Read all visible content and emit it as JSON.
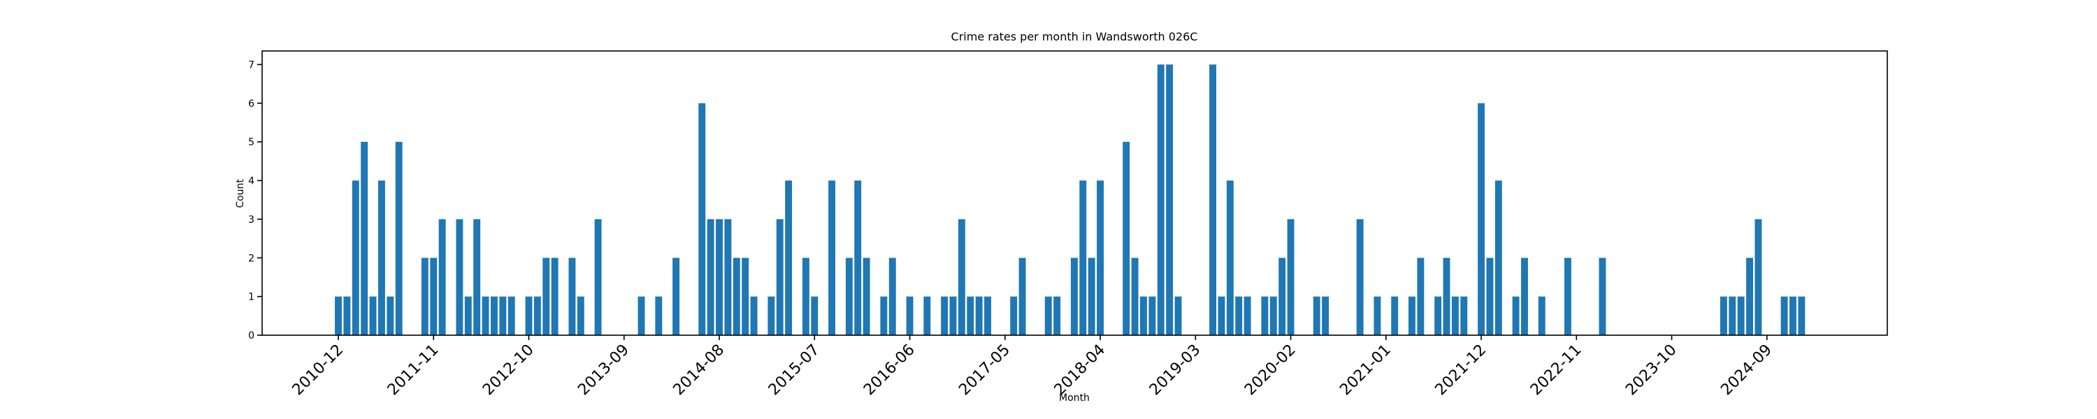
{
  "chart_data": {
    "type": "bar",
    "title": "Crime rates per month in Wandsworth 026C",
    "x_label": "Month",
    "y_label": "Count",
    "color": "#1f77b4",
    "categories": [
      "2010-12",
      null,
      null,
      null,
      null,
      null,
      null,
      null,
      null,
      null,
      null,
      "2011-11",
      null,
      null,
      null,
      null,
      null,
      null,
      null,
      null,
      null,
      null,
      "2012-10",
      null,
      null,
      null,
      null,
      null,
      null,
      null,
      null,
      null,
      null,
      "2013-09",
      null,
      null,
      null,
      null,
      null,
      null,
      null,
      null,
      null,
      null,
      "2014-08",
      null,
      null,
      null,
      null,
      null,
      null,
      null,
      null,
      null,
      null,
      "2015-07",
      null,
      null,
      null,
      null,
      null,
      null,
      null,
      null,
      null,
      null,
      "2016-06",
      null,
      null,
      null,
      null,
      null,
      null,
      null,
      null,
      null,
      null,
      "2017-05",
      null,
      null,
      null,
      null,
      null,
      null,
      null,
      null,
      null,
      null,
      "2018-04",
      null,
      null,
      null,
      null,
      null,
      null,
      null,
      null,
      null,
      null,
      "2019-03",
      null,
      null,
      null,
      null,
      null,
      null,
      null,
      null,
      null,
      null,
      "2020-02",
      null,
      null,
      null,
      null,
      null,
      null,
      null,
      null,
      null,
      null,
      "2021-01",
      null,
      null,
      null,
      null,
      null,
      null,
      null,
      null,
      null,
      null,
      "2021-12",
      null,
      null,
      null,
      null,
      null,
      null,
      null,
      null,
      null,
      null,
      "2022-11",
      null,
      null,
      null,
      null,
      null,
      null,
      null,
      null,
      null,
      null,
      "2023-10",
      null,
      null,
      null,
      null,
      null,
      null,
      null,
      null,
      null,
      null,
      "2024-09",
      null,
      null,
      null,
      null
    ],
    "values": [
      1,
      1,
      4,
      5,
      1,
      4,
      1,
      5,
      0,
      0,
      2,
      2,
      3,
      0,
      3,
      1,
      3,
      1,
      1,
      1,
      1,
      0,
      1,
      1,
      2,
      2,
      0,
      2,
      1,
      0,
      3,
      0,
      0,
      0,
      0,
      1,
      0,
      1,
      0,
      2,
      0,
      0,
      6,
      3,
      3,
      3,
      2,
      2,
      1,
      0,
      1,
      3,
      4,
      0,
      2,
      1,
      0,
      4,
      0,
      2,
      4,
      2,
      0,
      1,
      2,
      0,
      1,
      0,
      1,
      0,
      1,
      1,
      3,
      1,
      1,
      1,
      0,
      0,
      1,
      2,
      0,
      0,
      1,
      1,
      0,
      2,
      4,
      2,
      4,
      0,
      0,
      5,
      2,
      1,
      1,
      7,
      7,
      1,
      0,
      0,
      0,
      7,
      1,
      4,
      1,
      1,
      0,
      1,
      1,
      2,
      3,
      0,
      0,
      1,
      1,
      0,
      0,
      0,
      3,
      0,
      1,
      0,
      1,
      0,
      1,
      2,
      0,
      1,
      2,
      1,
      1,
      0,
      6,
      2,
      4,
      0,
      1,
      2,
      0,
      1,
      0,
      0,
      2,
      0,
      0,
      0,
      2,
      0,
      0,
      0,
      0,
      0,
      0,
      0,
      0,
      0,
      0,
      0,
      0,
      0,
      1,
      1,
      1,
      2,
      3,
      0,
      0,
      1,
      1,
      1
    ],
    "ylim": [
      0,
      7.35
    ],
    "yticks": [
      0,
      1,
      2,
      3,
      4,
      5,
      6,
      7
    ],
    "grid": false
  }
}
